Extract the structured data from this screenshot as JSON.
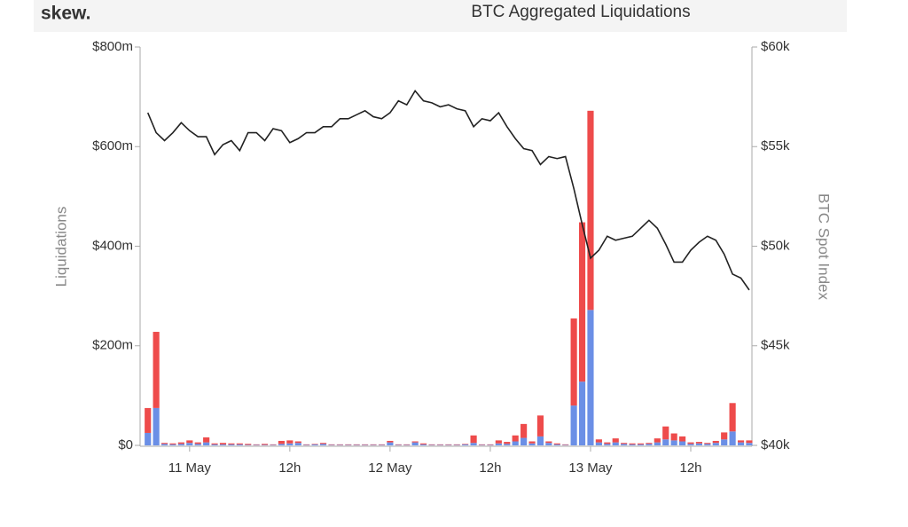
{
  "brand": "skew.",
  "chart_data": {
    "type": "bar",
    "stacked": true,
    "title": "BTC Aggregated Liquidations",
    "y_label": "Liquidations",
    "y2_label": "BTC Spot Index",
    "categories": [
      null,
      null,
      null,
      null,
      null,
      "11 May",
      null,
      null,
      null,
      null,
      null,
      null,
      null,
      null,
      null,
      null,
      null,
      "12h",
      null,
      null,
      null,
      null,
      null,
      null,
      null,
      null,
      null,
      null,
      null,
      "12 May",
      null,
      null,
      null,
      null,
      null,
      null,
      null,
      null,
      null,
      null,
      null,
      "12h",
      null,
      null,
      null,
      null,
      null,
      null,
      null,
      null,
      null,
      null,
      null,
      "13 May",
      null,
      null,
      null,
      null,
      null,
      null,
      null,
      null,
      null,
      null,
      null,
      "12h",
      null,
      null,
      null,
      null,
      null,
      null,
      null
    ],
    "series": [
      {
        "color": "#6b8fe6",
        "values": [
          25,
          75,
          3,
          2,
          3,
          5,
          3,
          6,
          2,
          2,
          2,
          2,
          1,
          1,
          1,
          1,
          3,
          4,
          5,
          1,
          2,
          3,
          1,
          1,
          1,
          1,
          1,
          1,
          1,
          6,
          1,
          1,
          6,
          2,
          1,
          1,
          1,
          1,
          2,
          5,
          1,
          1,
          4,
          3,
          8,
          15,
          4,
          18,
          5,
          2,
          1,
          80,
          128,
          272,
          6,
          3,
          6,
          3,
          2,
          2,
          3,
          6,
          12,
          10,
          8,
          3,
          4,
          3,
          5,
          12,
          28,
          6,
          5
        ]
      },
      {
        "color": "#ee4b4b",
        "values": [
          50,
          153,
          2,
          2,
          3,
          5,
          3,
          10,
          2,
          3,
          2,
          2,
          2,
          1,
          2,
          1,
          6,
          6,
          3,
          1,
          1,
          2,
          1,
          1,
          1,
          1,
          1,
          1,
          1,
          3,
          1,
          1,
          2,
          2,
          1,
          1,
          1,
          1,
          1,
          15,
          1,
          1,
          6,
          4,
          12,
          28,
          4,
          42,
          3,
          2,
          1,
          175,
          320,
          400,
          6,
          3,
          8,
          2,
          2,
          2,
          2,
          8,
          26,
          14,
          10,
          3,
          3,
          2,
          4,
          14,
          57,
          4,
          5
        ]
      },
      {
        "type": "line",
        "axis": "y2",
        "color": "#222222",
        "values": [
          56.7,
          55.7,
          55.3,
          55.7,
          56.2,
          55.8,
          55.5,
          55.5,
          54.6,
          55.1,
          55.3,
          54.8,
          55.7,
          55.7,
          55.3,
          55.9,
          55.8,
          55.2,
          55.4,
          55.7,
          55.7,
          56.0,
          56.0,
          56.4,
          56.4,
          56.6,
          56.8,
          56.5,
          56.4,
          56.7,
          57.3,
          57.1,
          57.8,
          57.3,
          57.2,
          57.0,
          57.1,
          56.9,
          56.8,
          56.0,
          56.4,
          56.3,
          56.7,
          56.0,
          55.4,
          54.9,
          54.8,
          54.1,
          54.5,
          54.4,
          54.5,
          52.9,
          51.1,
          49.4,
          49.8,
          50.5,
          50.3,
          50.4,
          50.5,
          50.9,
          51.3,
          50.9,
          50.1,
          49.2,
          49.2,
          49.8,
          50.2,
          50.5,
          50.3,
          49.6,
          48.6,
          48.4,
          47.8
        ]
      }
    ],
    "ylim": [
      0,
      800
    ],
    "yticks": [
      {
        "value": 0,
        "label": "$0"
      },
      {
        "value": 200,
        "label": "$200m"
      },
      {
        "value": 400,
        "label": "$400m"
      },
      {
        "value": 600,
        "label": "$600m"
      },
      {
        "value": 800,
        "label": "$800m"
      }
    ],
    "y2lim": [
      40,
      60
    ],
    "y2ticks": [
      {
        "value": 40,
        "label": "$40k"
      },
      {
        "value": 45,
        "label": "$45k"
      },
      {
        "value": 50,
        "label": "$50k"
      },
      {
        "value": 55,
        "label": "$55k"
      },
      {
        "value": 60,
        "label": "$60k"
      }
    ],
    "grid": false
  }
}
